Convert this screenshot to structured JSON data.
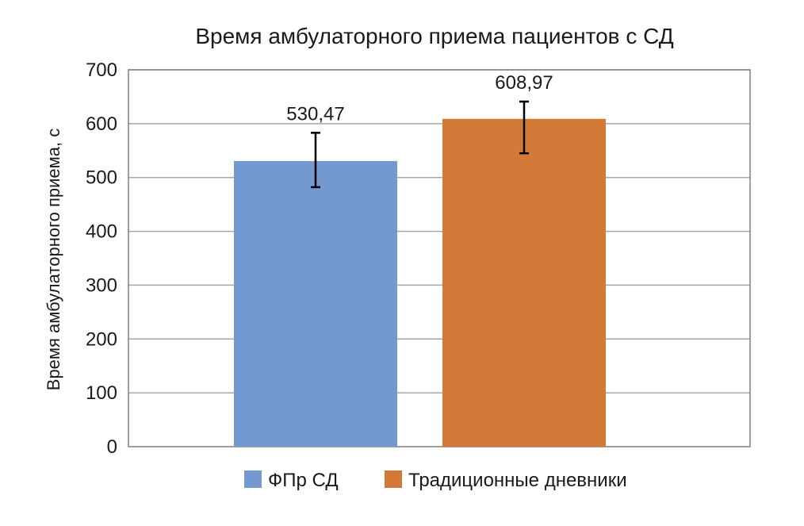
{
  "chart_data": {
    "type": "bar",
    "title": "Время амбулаторного приема пациентов с СД",
    "ylabel": "Время амбулаторного приема, с",
    "xlabel": "",
    "ylim": [
      0,
      700
    ],
    "yticks": [
      "0",
      "100",
      "200",
      "300",
      "400",
      "500",
      "600",
      "700"
    ],
    "ytick_values": [
      0,
      100,
      200,
      300,
      400,
      500,
      600,
      700
    ],
    "grid": true,
    "legend_position": "bottom",
    "series": [
      {
        "name": "ФПр СД",
        "value": 530.47,
        "label": "530,47",
        "error_low": 482,
        "error_high": 583,
        "color": "#7399d0"
      },
      {
        "name": "Традиционные дневники",
        "value": 608.97,
        "label": "608,97",
        "error_low": 545,
        "error_high": 641,
        "color": "#d47a39"
      }
    ],
    "colors": {
      "gridline": "#a6a6a6",
      "axis": "#7f7f7f",
      "error_bar": "#000000"
    }
  }
}
